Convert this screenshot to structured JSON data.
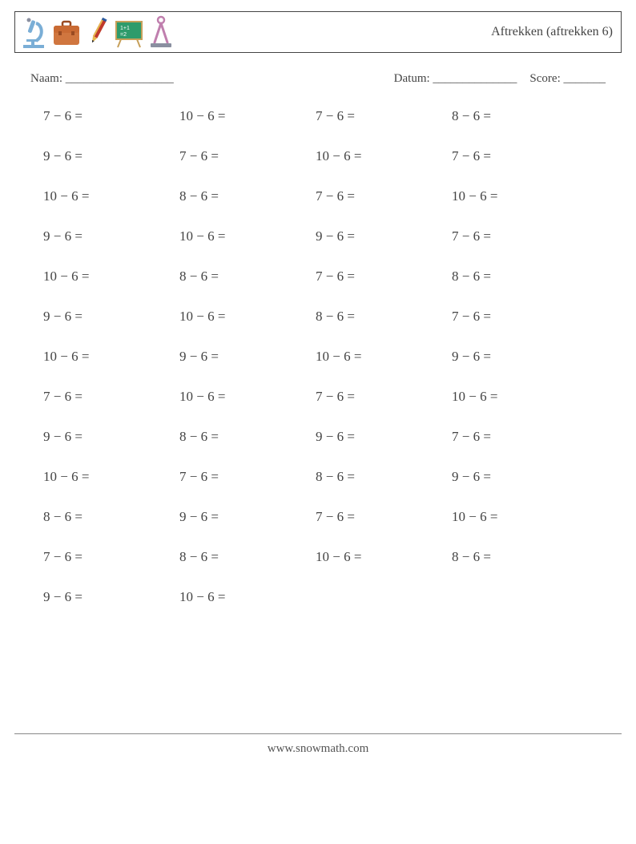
{
  "title": "Aftrekken (aftrekken 6)",
  "labels": {
    "name": "Naam: __________________",
    "date": "Datum: ______________",
    "score": "Score: _______"
  },
  "operator": "−",
  "subtrahend": 6,
  "columns": 4,
  "problems": [
    [
      7,
      10,
      7,
      8
    ],
    [
      9,
      7,
      10,
      7
    ],
    [
      10,
      8,
      7,
      10
    ],
    [
      9,
      10,
      9,
      7
    ],
    [
      10,
      8,
      7,
      8
    ],
    [
      9,
      10,
      8,
      7
    ],
    [
      10,
      9,
      10,
      9
    ],
    [
      7,
      10,
      7,
      10
    ],
    [
      9,
      8,
      9,
      7
    ],
    [
      10,
      7,
      8,
      9
    ],
    [
      8,
      9,
      7,
      10
    ],
    [
      7,
      8,
      10,
      8
    ],
    [
      9,
      10,
      null,
      null
    ]
  ],
  "footer_text": "www.snowmath.com",
  "colors": {
    "text": "#444444",
    "border": "#444444",
    "footer_rule": "#888888",
    "microscope": "#7aaed6",
    "briefcase_body": "#d0763f",
    "briefcase_dark": "#9a4b22",
    "pencil_red": "#c0392b",
    "pencil_yellow": "#e6b84f",
    "pencil_blue": "#2b5aa0",
    "board_green": "#2e9b6b",
    "board_frame": "#c7a05a",
    "compass_pink": "#c07fae",
    "compass_base": "#8a8fa0"
  }
}
